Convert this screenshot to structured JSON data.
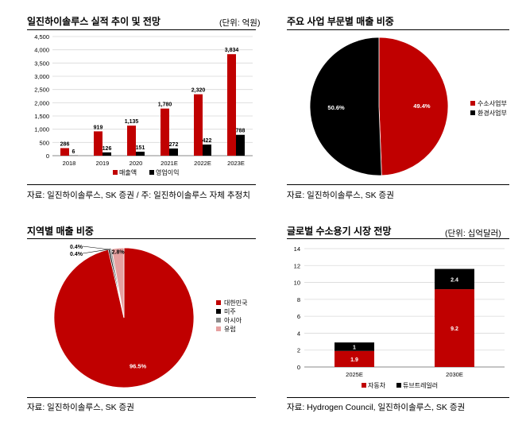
{
  "colors": {
    "red": "#c00000",
    "black": "#000000",
    "gray": "#8c8c8c",
    "pink": "#e6a0a0",
    "grid": "#d9d9d9"
  },
  "panels": {
    "top_left": {
      "title": "일진하이솔루스 실적 추이 및 전망",
      "unit": "(단위: 억원)",
      "source": "자료: 일진하이솔루스, SK 증권 / 주: 일진하이솔루스 자체 추정치"
    },
    "top_right": {
      "title": "주요 사업 부문별 매출 비중",
      "source": "자료: 일진하이솔루스, SK 증권"
    },
    "bottom_left": {
      "title": "지역별 매출 비중",
      "source": "자료: 일진하이솔루스, SK 증권"
    },
    "bottom_right": {
      "title": "글로벌 수소용기 시장 전망",
      "unit": "(단위: 십억달러)",
      "source": "자료: Hydrogen Council, 일진하이솔루스, SK 증권"
    }
  },
  "chart_data": [
    {
      "type": "bar",
      "categories": [
        "2018",
        "2019",
        "2020",
        "2021E",
        "2022E",
        "2023E"
      ],
      "series": [
        {
          "name": "매출액",
          "values": [
            286,
            919,
            1135,
            1780,
            2320,
            3834
          ],
          "labels": [
            "286",
            "919",
            "1,135",
            "1,780",
            "2,320",
            "3,834"
          ],
          "color": "#c00000"
        },
        {
          "name": "영업이익",
          "values": [
            6,
            126,
            151,
            272,
            422,
            788
          ],
          "labels": [
            "6",
            "126",
            "151",
            "272",
            "422",
            "788"
          ],
          "color": "#000000"
        }
      ],
      "ylim": [
        0,
        4500
      ],
      "yticks": [
        "0",
        "500",
        "1,000",
        "1,500",
        "2,000",
        "2,500",
        "3,000",
        "3,500",
        "4,000",
        "4,500"
      ],
      "legend": "bottom"
    },
    {
      "type": "pie",
      "slices": [
        {
          "name": "수소사업부",
          "value": 49.4,
          "label": "49.4%",
          "color": "#c00000"
        },
        {
          "name": "환경사업부",
          "value": 50.6,
          "label": "50.6%",
          "color": "#000000"
        }
      ],
      "legend": "right"
    },
    {
      "type": "pie",
      "slices": [
        {
          "name": "대한민국",
          "value": 96.5,
          "label": "96.5%",
          "color": "#c00000"
        },
        {
          "name": "미주",
          "value": 0.4,
          "label": "0.4%",
          "color": "#000000"
        },
        {
          "name": "아시아",
          "value": 0.4,
          "label": "0.4%",
          "color": "#8c8c8c"
        },
        {
          "name": "유럽",
          "value": 2.8,
          "label": "2.8%",
          "color": "#e6a0a0"
        }
      ],
      "legend": "right"
    },
    {
      "type": "bar",
      "stacked": true,
      "categories": [
        "2025E",
        "2030E"
      ],
      "series": [
        {
          "name": "자동차",
          "values": [
            1.9,
            9.2
          ],
          "labels": [
            "1.9",
            "9.2"
          ],
          "color": "#c00000"
        },
        {
          "name": "튜브트레일러",
          "values": [
            1,
            2.4
          ],
          "labels": [
            "1",
            "2.4"
          ],
          "color": "#000000"
        }
      ],
      "ylim": [
        0,
        14
      ],
      "yticks": [
        "0",
        "2",
        "4",
        "6",
        "8",
        "10",
        "12",
        "14"
      ],
      "legend": "bottom"
    }
  ]
}
